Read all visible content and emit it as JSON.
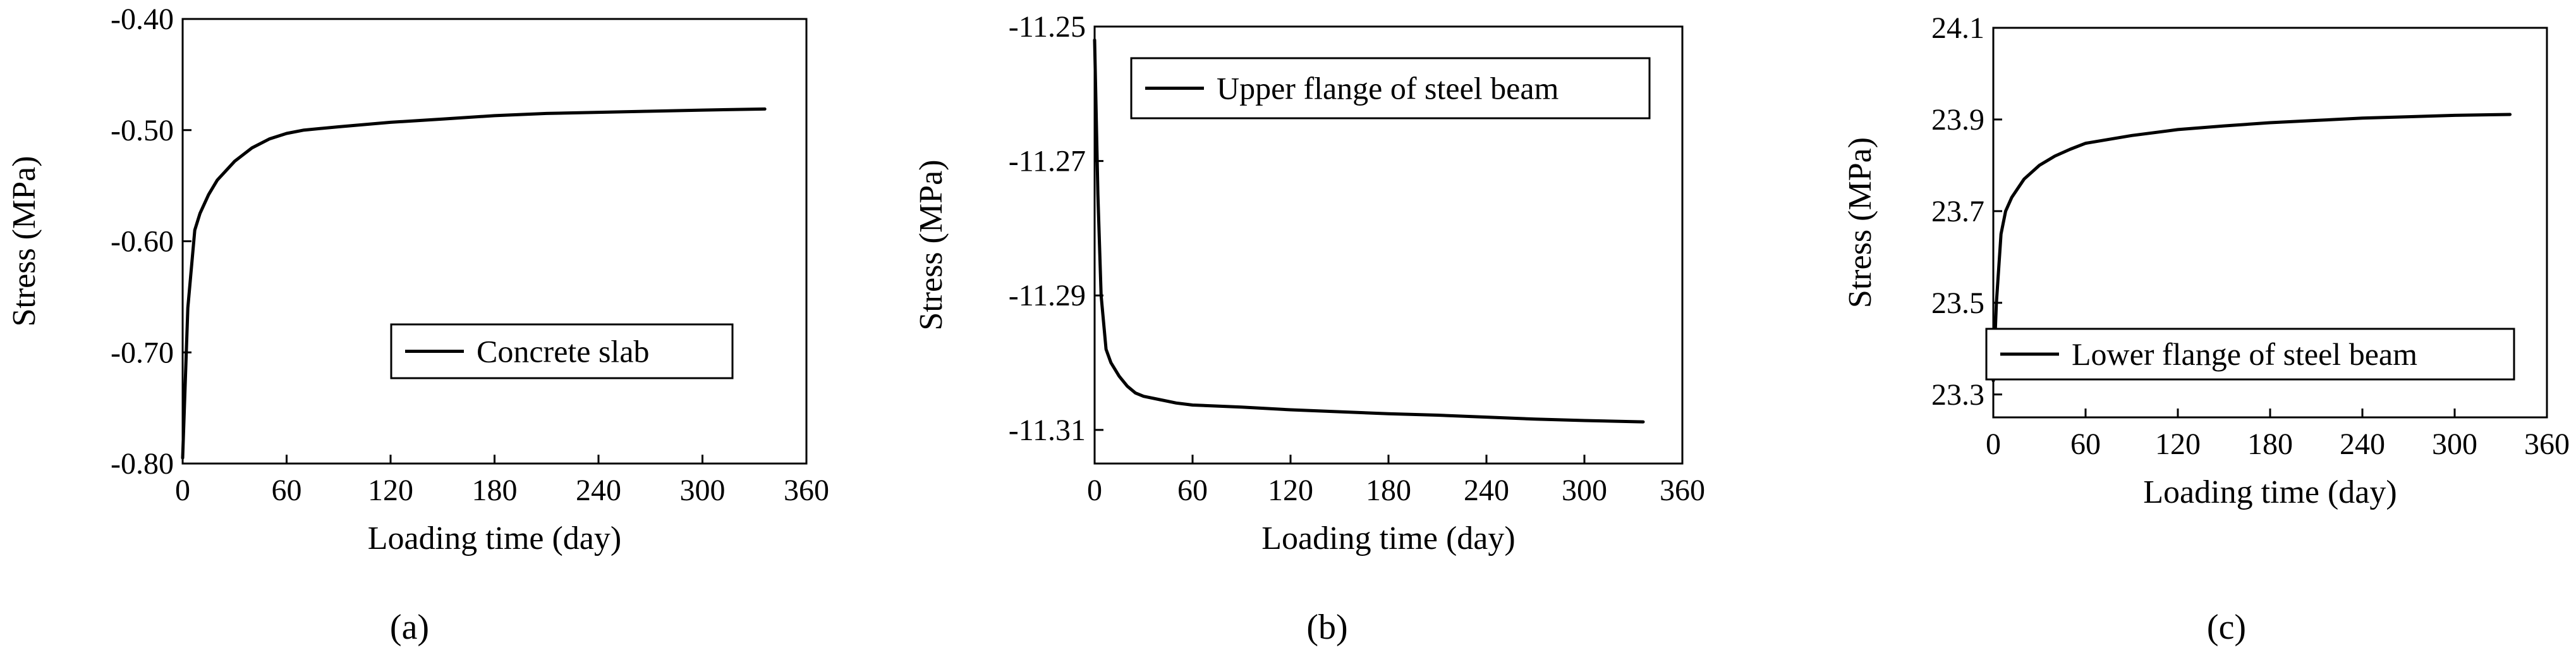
{
  "chart_data": [
    {
      "type": "line",
      "panel_label": "(a)",
      "title": "",
      "xlabel": "Loading time (day)",
      "ylabel": "Stress (MPa)",
      "xlim": [
        0,
        360
      ],
      "ylim": [
        -0.8,
        -0.4
      ],
      "x_ticks": [
        "0",
        "60",
        "120",
        "180",
        "240",
        "300",
        "360"
      ],
      "y_ticks": [
        "-0.80",
        "-0.70",
        "-0.60",
        "-0.50",
        "-0.40"
      ],
      "legend": {
        "entries": [
          "Concrete slab"
        ],
        "position": "bottom-right"
      },
      "grid": false,
      "series": [
        {
          "name": "Concrete slab",
          "x": [
            0,
            3,
            7,
            10,
            15,
            20,
            30,
            40,
            50,
            60,
            70,
            90,
            120,
            150,
            180,
            210,
            240,
            270,
            300,
            336
          ],
          "y": [
            -0.795,
            -0.66,
            -0.59,
            -0.575,
            -0.558,
            -0.545,
            -0.528,
            -0.516,
            -0.508,
            -0.503,
            -0.5,
            -0.497,
            -0.493,
            -0.49,
            -0.487,
            -0.485,
            -0.484,
            -0.483,
            -0.482,
            -0.481
          ]
        }
      ]
    },
    {
      "type": "line",
      "panel_label": "(b)",
      "title": "",
      "xlabel": "Loading time (day)",
      "ylabel": "Stress (MPa)",
      "xlim": [
        0,
        360
      ],
      "ylim": [
        -11.315,
        -11.25
      ],
      "x_ticks": [
        "0",
        "60",
        "120",
        "180",
        "240",
        "300",
        "360"
      ],
      "y_ticks": [
        "-11.31",
        "-11.29",
        "-11.27",
        "-11.25"
      ],
      "legend": {
        "entries": [
          "Upper flange of steel beam"
        ],
        "position": "top-right"
      },
      "grid": false,
      "series": [
        {
          "name": "Upper flange of steel beam",
          "x": [
            0,
            2,
            4,
            7,
            10,
            15,
            20,
            25,
            30,
            40,
            50,
            60,
            90,
            120,
            150,
            180,
            210,
            240,
            270,
            300,
            336
          ],
          "y": [
            -11.252,
            -11.275,
            -11.29,
            -11.298,
            -11.3,
            -11.302,
            -11.3035,
            -11.3045,
            -11.305,
            -11.3055,
            -11.306,
            -11.3063,
            -11.3066,
            -11.307,
            -11.3073,
            -11.3076,
            -11.3078,
            -11.3081,
            -11.3084,
            -11.3086,
            -11.3088
          ]
        }
      ]
    },
    {
      "type": "line",
      "panel_label": "(c)",
      "title": "",
      "xlabel": "Loading time (day)",
      "ylabel": "Stress (MPa)",
      "xlim": [
        0,
        360
      ],
      "ylim": [
        23.25,
        24.1
      ],
      "x_ticks": [
        "0",
        "60",
        "120",
        "180",
        "240",
        "300",
        "360"
      ],
      "y_ticks": [
        "23.3",
        "23.5",
        "23.7",
        "23.9",
        "24.1"
      ],
      "legend": {
        "entries": [
          "Lower flange of steel beam"
        ],
        "position": "bottom-right"
      },
      "grid": false,
      "series": [
        {
          "name": "Lower flange of steel beam",
          "x": [
            0,
            2,
            5,
            8,
            12,
            20,
            30,
            40,
            50,
            60,
            90,
            120,
            150,
            180,
            210,
            240,
            270,
            300,
            336
          ],
          "y": [
            23.33,
            23.5,
            23.65,
            23.7,
            23.73,
            23.77,
            23.8,
            23.82,
            23.835,
            23.848,
            23.865,
            23.878,
            23.886,
            23.893,
            23.898,
            23.903,
            23.906,
            23.909,
            23.911
          ]
        }
      ]
    }
  ]
}
